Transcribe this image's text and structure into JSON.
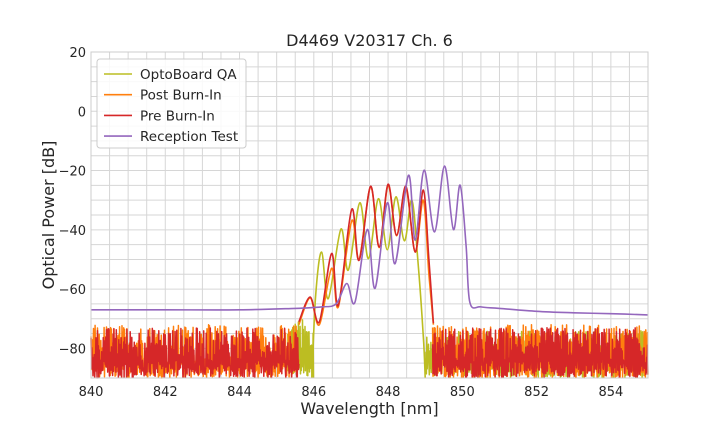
{
  "chart_data": {
    "type": "line",
    "title": "D4469 V20317 Ch. 6",
    "xlabel": "Wavelength [nm]",
    "ylabel": "Optical Power [dB]",
    "xlim": [
      840,
      855
    ],
    "ylim": [
      -90,
      20
    ],
    "xticks": [
      840,
      842,
      844,
      846,
      848,
      850,
      852,
      854
    ],
    "yticks": [
      20,
      0,
      -20,
      -40,
      -60,
      -80
    ],
    "xtick_labels": [
      "840",
      "842",
      "844",
      "846",
      "848",
      "850",
      "852",
      "854"
    ],
    "ytick_labels": [
      "20",
      "0",
      "−20",
      "−40",
      "−60",
      "−80"
    ],
    "grid": true,
    "grid_minor_step": {
      "x": 0.5,
      "y": 5
    },
    "legend_position": "top-left",
    "series": [
      {
        "name": "OptoBoard QA",
        "color": "#bcbd22",
        "noise": [
          {
            "from": 845.3,
            "to": 846.0,
            "min": -90,
            "max": -70
          },
          {
            "from": 849.0,
            "to": 855,
            "min": -90,
            "max": -74
          }
        ],
        "x": [
          845.95,
          846.05,
          846.21,
          846.39,
          846.73,
          846.93,
          847.24,
          847.47,
          847.74,
          847.98,
          848.21,
          848.44,
          848.64,
          848.8,
          848.95,
          849.0
        ],
        "y": [
          -90,
          -62,
          -47.5,
          -63.2,
          -39.8,
          -53.6,
          -30.9,
          -49.7,
          -29.5,
          -46.7,
          -28.9,
          -43.7,
          -30,
          -50,
          -76,
          -90
        ]
      },
      {
        "name": "Post Burn-In",
        "color": "#ff7f0e",
        "noise": [
          {
            "from": 840,
            "to": 845.6,
            "min": -90,
            "max": -72
          },
          {
            "from": 849.2,
            "to": 855,
            "min": -90,
            "max": -72
          }
        ],
        "x": [
          845.6,
          845.9,
          846.15,
          846.48,
          846.66,
          847.02,
          847.22,
          847.53,
          847.76,
          848.0,
          848.23,
          848.48,
          848.73,
          848.95,
          849.1,
          849.22
        ],
        "y": [
          -72,
          -63,
          -72,
          -53,
          -66,
          -37,
          -50,
          -25.5,
          -46,
          -25,
          -42,
          -26,
          -47.5,
          -30,
          -55,
          -72
        ]
      },
      {
        "name": "Pre Burn-In",
        "color": "#d62728",
        "noise": [
          {
            "from": 840,
            "to": 845.6,
            "min": -90,
            "max": -73
          },
          {
            "from": 849.2,
            "to": 855,
            "min": -90,
            "max": -73
          }
        ],
        "x": [
          845.6,
          845.9,
          846.15,
          846.48,
          846.66,
          847.02,
          847.22,
          847.53,
          847.76,
          848.0,
          848.23,
          848.48,
          848.73,
          848.95,
          849.1,
          849.22
        ],
        "y": [
          -71,
          -62.7,
          -71,
          -48,
          -65.5,
          -33.1,
          -50.3,
          -25.3,
          -45.8,
          -24.6,
          -41.8,
          -25.3,
          -47.5,
          -26.6,
          -50,
          -71.5
        ]
      },
      {
        "name": "Reception Test",
        "color": "#9467bd",
        "noise": [],
        "x": [
          840,
          842,
          844,
          845.5,
          846.2,
          846.6,
          846.89,
          847.11,
          847.44,
          847.65,
          847.98,
          848.19,
          848.55,
          848.73,
          848.97,
          849.25,
          849.52,
          849.76,
          849.94,
          850.1,
          850.2,
          850.5,
          851,
          852,
          853,
          854,
          855
        ],
        "y": [
          -67,
          -67,
          -67,
          -66.5,
          -66,
          -65,
          -58.1,
          -64.4,
          -39.9,
          -59.7,
          -30.9,
          -51.4,
          -21.6,
          -43.5,
          -19.9,
          -40.7,
          -18.5,
          -39.9,
          -24.9,
          -45,
          -64.4,
          -66,
          -66.5,
          -67.5,
          -68,
          -68.3,
          -68.7
        ]
      }
    ]
  }
}
